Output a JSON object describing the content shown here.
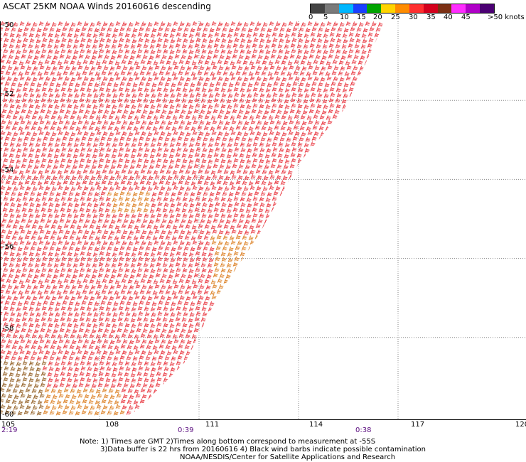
{
  "title": "ASCAT 25KM NOAA Winds 20160616 descending",
  "colorbar": {
    "unit_label": ">50 knots",
    "ticks": [
      "0",
      "5",
      "10",
      "15",
      "20",
      "25",
      "30",
      "35",
      "40",
      "45"
    ],
    "colors": [
      "#444444",
      "#7a7a7a",
      "#00b7ff",
      "#1a3fff",
      "#00a400",
      "#ffd400",
      "#ff8c00",
      "#ff2f2f",
      "#d4001c",
      "#7b2f13",
      "#ff2cff",
      "#b000c8",
      "#4b0073"
    ]
  },
  "map": {
    "lon_ticks": [
      "105",
      "108",
      "111",
      "114",
      "117",
      "120"
    ],
    "lat_ticks": [
      "-50",
      "-52",
      "-54",
      "-56",
      "-58",
      "-60"
    ],
    "times": [
      "2:19",
      "0:39",
      "0:38"
    ]
  },
  "notes": {
    "line1": "Note: 1) Times are GMT 2)Times along bottom correspond to measurement at -55S",
    "line2": "3)Data buffer is 22 hrs from 20160616 4) Black wind barbs indicate possible contamination",
    "line3": "NOAA/NESDIS/Center for Satellite Applications and Research"
  },
  "swath": {
    "outline": [
      [
        105.0,
        -50.0
      ],
      [
        116.6,
        -50.0
      ],
      [
        115.4,
        -52.2
      ],
      [
        114.0,
        -53.6
      ],
      [
        112.8,
        -55.4
      ],
      [
        111.6,
        -56.9
      ],
      [
        110.6,
        -58.6
      ],
      [
        109.2,
        -59.8
      ],
      [
        108.8,
        -60.0
      ],
      [
        105.0,
        -60.0
      ]
    ],
    "rows": 72,
    "barb_color_main": "#e8313a",
    "barb_color_orange": "#db7c1c",
    "barb_color_brown": "#8f5a1d"
  }
}
